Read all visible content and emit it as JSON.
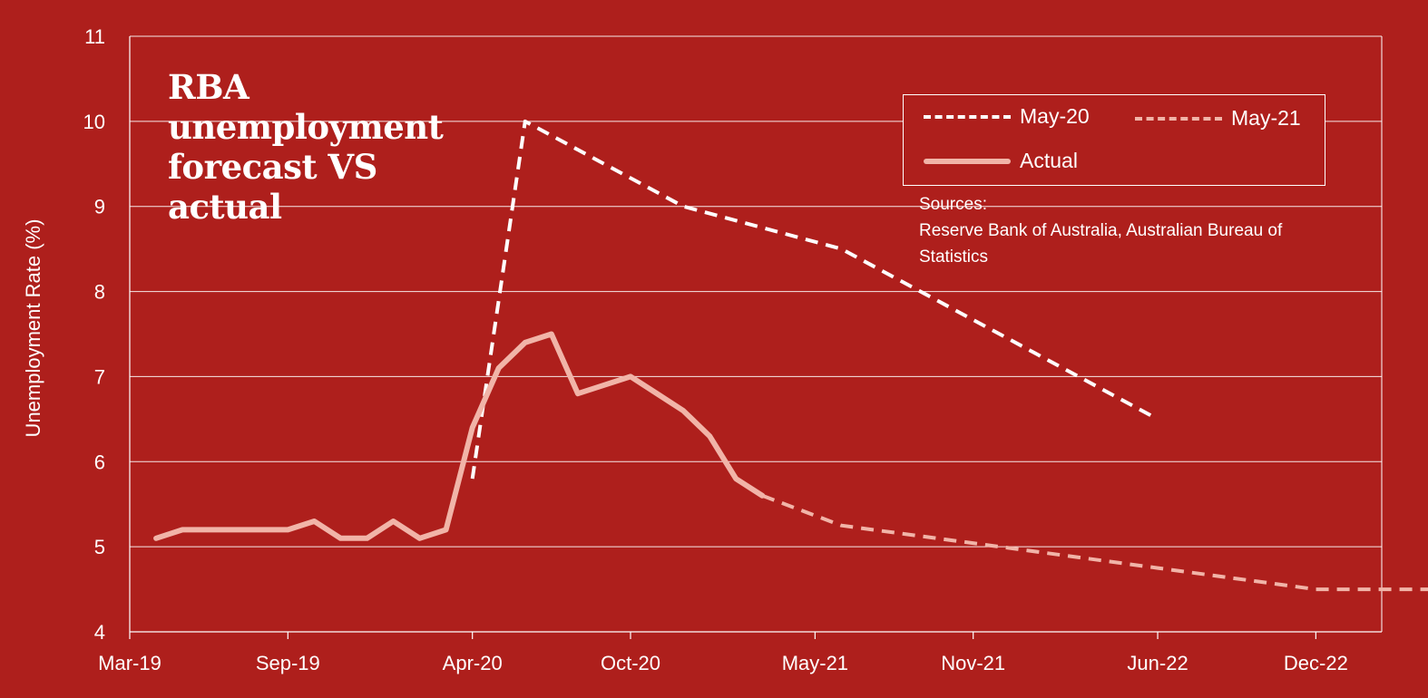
{
  "chart_data": {
    "type": "line",
    "title": "RBA unemployment forecast VS actual",
    "ylabel": "Unemployment Rate (%)",
    "xlabel": "",
    "ylim": [
      4,
      11
    ],
    "yticks": [
      "4",
      "5",
      "6",
      "7",
      "8",
      "9",
      "10",
      "11"
    ],
    "xticks": [
      "Mar-19",
      "Sep-19",
      "Apr-20",
      "Oct-20",
      "May-21",
      "Nov-21",
      "Jun-22",
      "Dec-22"
    ],
    "grid": true,
    "legend_placement": "top-right",
    "sources_label": "Sources:",
    "sources_text": "Reserve Bank of Australia, Australian Bureau of Statistics",
    "colors": {
      "background": "#ae1f1c",
      "may20": "#ffffff",
      "may21": "#f1b4a8",
      "actual": "#f1b4a8",
      "grid": "#ffffff"
    },
    "series": [
      {
        "name": "May-20",
        "style": "dashed",
        "x": [
          "Apr-20",
          "Jun-20",
          "Dec-20",
          "Jun-21",
          "Jun-22"
        ],
        "values": [
          5.8,
          10,
          9,
          8.5,
          6.5
        ]
      },
      {
        "name": "May-21",
        "style": "dashed",
        "x": [
          "Mar-21",
          "Jun-21",
          "Dec-21",
          "Jun-22",
          "Dec-22",
          "Jun-23"
        ],
        "values": [
          5.6,
          5.25,
          5.0,
          4.75,
          4.5,
          4.5
        ]
      },
      {
        "name": "Actual",
        "style": "solid",
        "x": [
          "Apr-19",
          "May-19",
          "Jun-19",
          "Jul-19",
          "Aug-19",
          "Sep-19",
          "Oct-19",
          "Nov-19",
          "Dec-19",
          "Jan-20",
          "Feb-20",
          "Mar-20",
          "Apr-20",
          "May-20",
          "Jun-20",
          "Jul-20",
          "Aug-20",
          "Sep-20",
          "Oct-20",
          "Nov-20",
          "Dec-20",
          "Jan-21",
          "Feb-21",
          "Mar-21"
        ],
        "values": [
          5.1,
          5.2,
          5.2,
          5.2,
          5.2,
          5.2,
          5.3,
          5.1,
          5.1,
          5.3,
          5.1,
          5.2,
          6.4,
          7.1,
          7.4,
          7.5,
          6.8,
          6.9,
          7.0,
          6.8,
          6.6,
          6.3,
          5.8,
          5.6
        ]
      }
    ]
  }
}
